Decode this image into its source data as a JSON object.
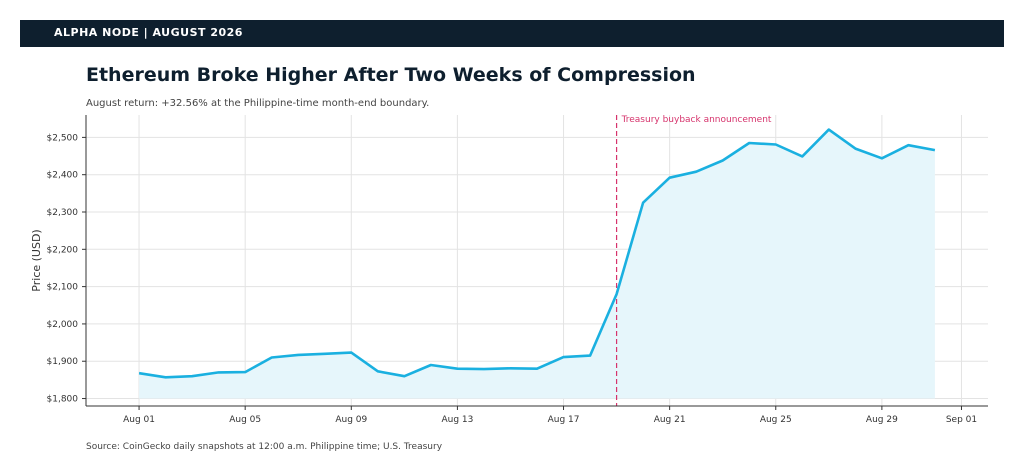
{
  "header": {
    "brand": "ALPHA NODE | AUGUST 2026"
  },
  "title": "Ethereum Broke Higher After Two Weeks of Compression",
  "subtitle": "August return: +32.56% at the Philippine-time month-end boundary.",
  "source": "Source: CoinGecko daily snapshots at 12:00 a.m. Philippine time; U.S. Treasury",
  "colors": {
    "line": "#1ab0e0",
    "fill": "#e6f6fb",
    "annotation": "#d6336c",
    "header_bg": "#0e1f2e",
    "grid": "#e3e3e3"
  },
  "chart_data": {
    "type": "area",
    "xlabel": "",
    "ylabel": "Price (USD)",
    "x": [
      "2026-08-01",
      "2026-08-02",
      "2026-08-03",
      "2026-08-04",
      "2026-08-05",
      "2026-08-06",
      "2026-08-07",
      "2026-08-08",
      "2026-08-09",
      "2026-08-10",
      "2026-08-11",
      "2026-08-12",
      "2026-08-13",
      "2026-08-14",
      "2026-08-15",
      "2026-08-16",
      "2026-08-17",
      "2026-08-18",
      "2026-08-19",
      "2026-08-20",
      "2026-08-21",
      "2026-08-22",
      "2026-08-23",
      "2026-08-24",
      "2026-08-25",
      "2026-08-26",
      "2026-08-27",
      "2026-08-28",
      "2026-08-29",
      "2026-08-30",
      "2026-08-31"
    ],
    "series": [
      {
        "values": [
          1868,
          1857,
          1860,
          1870,
          1871,
          1910,
          1917,
          1920,
          1923,
          1873,
          1860,
          1890,
          1880,
          1879,
          1881,
          1880,
          1911,
          1915,
          2080,
          2325,
          2392,
          2408,
          2438,
          2485,
          2481,
          2449,
          2521,
          2470,
          2444,
          2479,
          2466
        ]
      }
    ],
    "xticks": [
      "Aug 01",
      "Aug 05",
      "Aug 09",
      "Aug 13",
      "Aug 17",
      "Aug 21",
      "Aug 25",
      "Aug 29",
      "Sep 01"
    ],
    "xtick_dates": [
      "2026-08-01",
      "2026-08-05",
      "2026-08-09",
      "2026-08-13",
      "2026-08-17",
      "2026-08-21",
      "2026-08-25",
      "2026-08-29",
      "2026-09-01"
    ],
    "yticks": [
      "$1,800",
      "$1,900",
      "$2,000",
      "$2,100",
      "$2,200",
      "$2,300",
      "$2,400",
      "$2,500"
    ],
    "ytick_values": [
      1800,
      1900,
      2000,
      2100,
      2200,
      2300,
      2400,
      2500
    ],
    "ylim": [
      1780,
      2560
    ],
    "xlim": [
      "2026-07-30",
      "2026-09-02"
    ],
    "grid": true,
    "annotations": [
      {
        "x": "2026-08-19",
        "label": "Treasury buyback announcement"
      }
    ]
  }
}
